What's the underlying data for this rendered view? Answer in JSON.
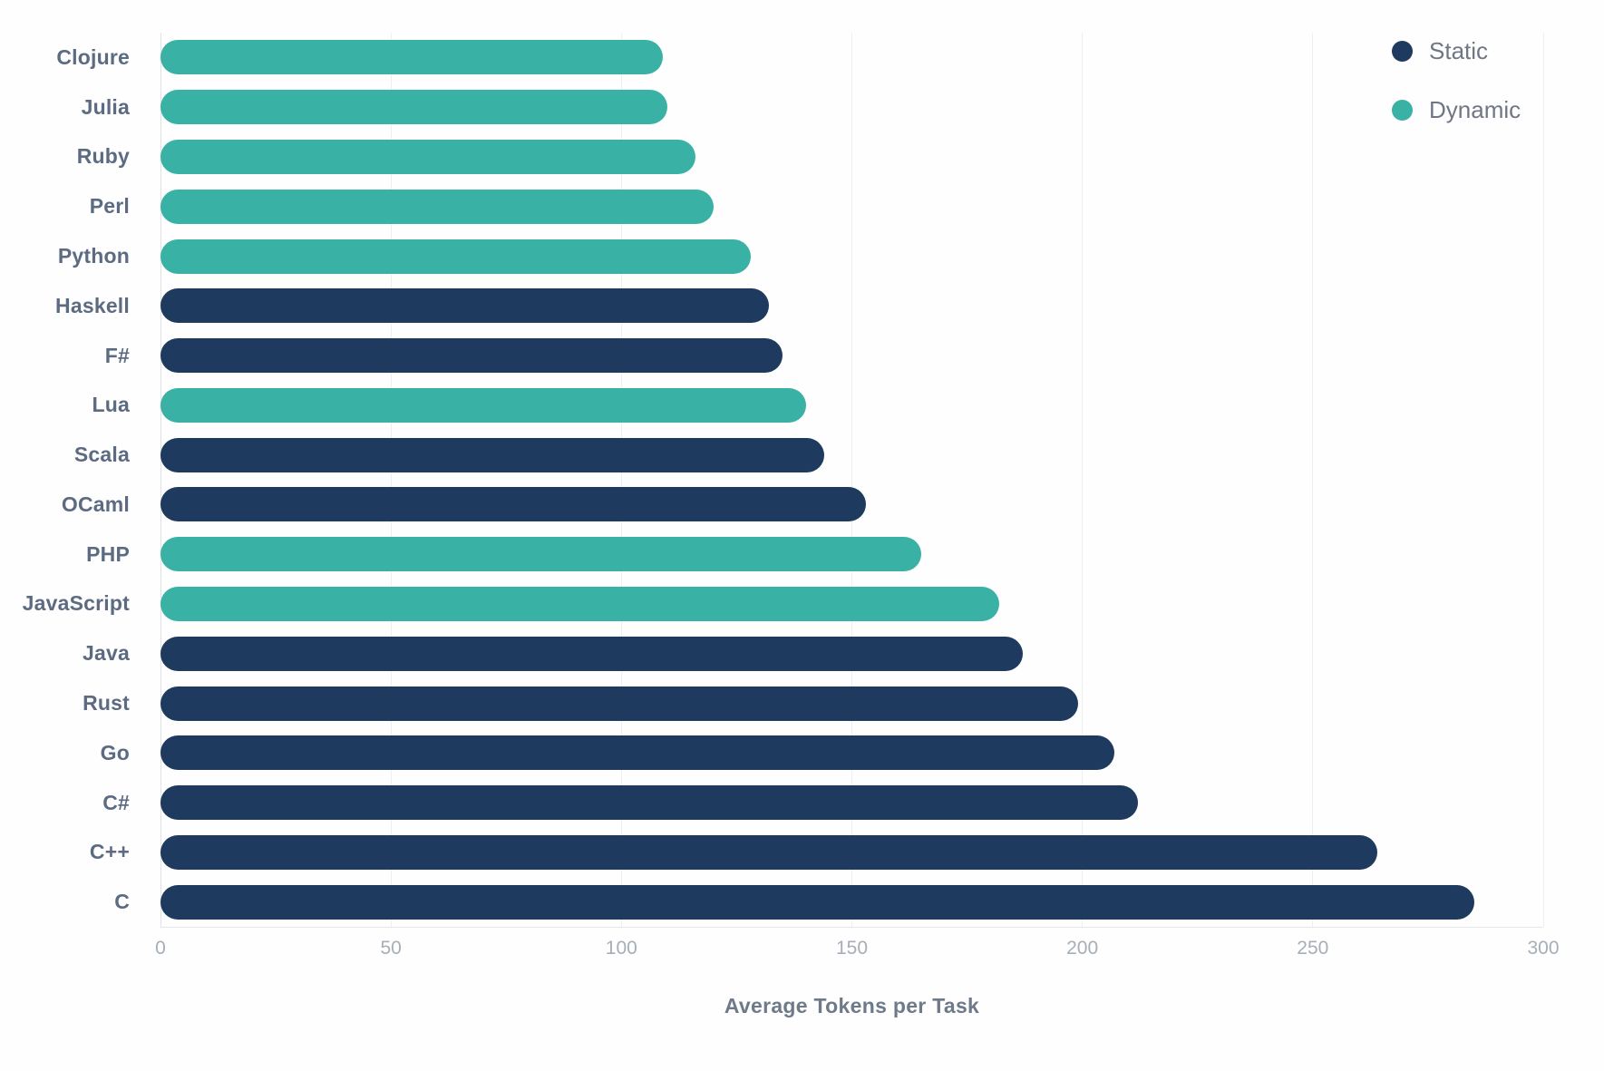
{
  "chart_data": {
    "type": "bar",
    "orientation": "horizontal",
    "xlabel": "Average Tokens per Task",
    "ylabel": "",
    "xlim": [
      0,
      300
    ],
    "x_ticks": [
      0,
      50,
      100,
      150,
      200,
      250,
      300
    ],
    "grid": true,
    "legend_position": "top-right",
    "series": [
      {
        "name": "Static",
        "color": "#1e3a5f"
      },
      {
        "name": "Dynamic",
        "color": "#39b2a5"
      }
    ],
    "bars": [
      {
        "label": "Clojure",
        "value": 109,
        "series": "Dynamic"
      },
      {
        "label": "Julia",
        "value": 110,
        "series": "Dynamic"
      },
      {
        "label": "Ruby",
        "value": 116,
        "series": "Dynamic"
      },
      {
        "label": "Perl",
        "value": 120,
        "series": "Dynamic"
      },
      {
        "label": "Python",
        "value": 128,
        "series": "Dynamic"
      },
      {
        "label": "Haskell",
        "value": 132,
        "series": "Static"
      },
      {
        "label": "F#",
        "value": 135,
        "series": "Static"
      },
      {
        "label": "Lua",
        "value": 140,
        "series": "Dynamic"
      },
      {
        "label": "Scala",
        "value": 144,
        "series": "Static"
      },
      {
        "label": "OCaml",
        "value": 153,
        "series": "Static"
      },
      {
        "label": "PHP",
        "value": 165,
        "series": "Dynamic"
      },
      {
        "label": "JavaScript",
        "value": 182,
        "series": "Dynamic"
      },
      {
        "label": "Java",
        "value": 187,
        "series": "Static"
      },
      {
        "label": "Rust",
        "value": 199,
        "series": "Static"
      },
      {
        "label": "Go",
        "value": 207,
        "series": "Static"
      },
      {
        "label": "C#",
        "value": 212,
        "series": "Static"
      },
      {
        "label": "C++",
        "value": 264,
        "series": "Static"
      },
      {
        "label": "C",
        "value": 285,
        "series": "Static"
      }
    ]
  }
}
